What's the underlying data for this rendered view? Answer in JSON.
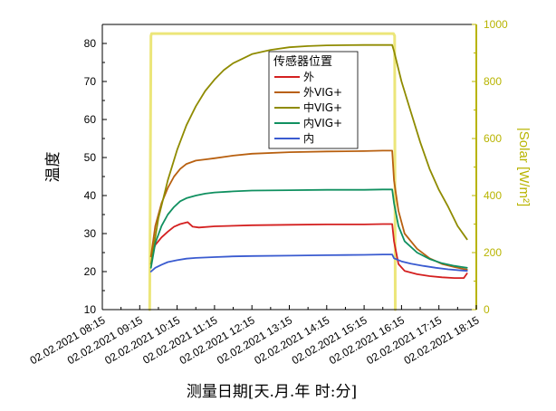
{
  "chart_data": {
    "type": "line",
    "xlabel": "测量日期[天.月.年 时:分]",
    "ylabel": "温度",
    "y2label": "|Solar [W/m²]",
    "x_ticks": [
      "02.02.2021 08:15",
      "02.02.2021 09:15",
      "02.02.2021 10:15",
      "02.02.2021 11:15",
      "02.02.2021 12:15",
      "02.02.2021 13:15",
      "02.02.2021 14:15",
      "02.02.2021 15:15",
      "02.02.2021 16:15",
      "02.02.2021 17:15",
      "02.02.2021 18:15"
    ],
    "xlim": [
      "08:15",
      "18:15"
    ],
    "ylim": [
      10,
      85
    ],
    "y_ticks": [
      10,
      20,
      30,
      40,
      50,
      60,
      70,
      80
    ],
    "y2lim": [
      0,
      1000
    ],
    "y2_ticks": [
      0,
      200,
      400,
      600,
      800,
      1000
    ],
    "legend": {
      "title": "传感器位置",
      "placement": "top-center"
    },
    "series": [
      {
        "name": "外",
        "color": "#d42020",
        "axis": "left",
        "x": [
          "09:33",
          "09:40",
          "09:50",
          "10:00",
          "10:10",
          "10:20",
          "10:32",
          "10:40",
          "10:50",
          "11:15",
          "12:15",
          "13:15",
          "14:15",
          "15:15",
          "15:45",
          "16:00",
          "16:03",
          "16:10",
          "16:20",
          "16:40",
          "17:00",
          "17:20",
          "17:40",
          "17:55",
          "18:00"
        ],
        "y": [
          24,
          27,
          29,
          30.5,
          31.8,
          32.5,
          33,
          31.8,
          31.6,
          31.9,
          32.2,
          32.3,
          32.4,
          32.4,
          32.5,
          32.5,
          28,
          22,
          20.2,
          19.3,
          18.8,
          18.5,
          18.3,
          18.3,
          19.5
        ]
      },
      {
        "name": "外VIG+",
        "color": "#b86010",
        "axis": "left",
        "x": [
          "09:33",
          "09:40",
          "09:50",
          "10:00",
          "10:10",
          "10:20",
          "10:30",
          "10:45",
          "11:00",
          "11:15",
          "11:45",
          "12:15",
          "13:15",
          "14:15",
          "15:15",
          "15:45",
          "16:00",
          "16:03",
          "16:10",
          "16:20",
          "16:40",
          "17:00",
          "17:20",
          "17:40",
          "18:00"
        ],
        "y": [
          24,
          32,
          38,
          42,
          45,
          47,
          48.3,
          49.2,
          49.5,
          49.8,
          50.5,
          51,
          51.4,
          51.6,
          51.7,
          51.8,
          51.8,
          44,
          36,
          30,
          26,
          23.5,
          22,
          21.2,
          20.5
        ]
      },
      {
        "name": "中VIG+",
        "color": "#8f8b00",
        "axis": "left",
        "x": [
          "09:33",
          "09:45",
          "10:00",
          "10:15",
          "10:30",
          "10:45",
          "11:00",
          "11:15",
          "11:30",
          "11:45",
          "12:00",
          "12:15",
          "12:45",
          "13:15",
          "13:45",
          "14:15",
          "15:15",
          "15:45",
          "16:00",
          "16:03",
          "16:15",
          "16:30",
          "16:45",
          "17:00",
          "17:15",
          "17:30",
          "17:45",
          "18:00"
        ],
        "y": [
          22,
          34,
          44,
          52,
          58.5,
          63.5,
          67.5,
          70.5,
          73,
          74.8,
          76,
          77.2,
          78.3,
          79,
          79.3,
          79.5,
          79.6,
          79.6,
          79.6,
          78,
          70,
          62,
          54,
          47,
          41.5,
          37,
          32,
          28.5
        ]
      },
      {
        "name": "内VIG+",
        "color": "#109060",
        "axis": "left",
        "x": [
          "09:33",
          "09:40",
          "09:50",
          "10:00",
          "10:10",
          "10:20",
          "10:30",
          "10:45",
          "11:00",
          "11:15",
          "11:45",
          "12:15",
          "13:15",
          "14:15",
          "15:15",
          "15:45",
          "16:00",
          "16:03",
          "16:10",
          "16:20",
          "16:40",
          "17:00",
          "17:20",
          "17:40",
          "18:00"
        ],
        "y": [
          21,
          27.5,
          32,
          35,
          37,
          38.5,
          39.3,
          40,
          40.5,
          40.8,
          41.1,
          41.3,
          41.4,
          41.5,
          41.5,
          41.6,
          41.6,
          38,
          32,
          28,
          25,
          23.3,
          22.2,
          21.5,
          21
        ]
      },
      {
        "name": "内",
        "color": "#3a5bd0",
        "axis": "left",
        "x": [
          "09:33",
          "09:40",
          "09:50",
          "10:00",
          "10:15",
          "10:30",
          "10:45",
          "11:15",
          "11:45",
          "12:15",
          "13:15",
          "14:15",
          "15:15",
          "15:45",
          "16:00",
          "16:03",
          "16:15",
          "16:30",
          "16:50",
          "17:10",
          "17:30",
          "17:50",
          "18:00"
        ],
        "y": [
          20,
          21,
          21.8,
          22.5,
          23,
          23.4,
          23.6,
          23.8,
          24,
          24.1,
          24.2,
          24.3,
          24.4,
          24.5,
          24.5,
          23.5,
          22.7,
          22.1,
          21.5,
          21,
          20.6,
          20.3,
          20.2
        ]
      },
      {
        "name": "Solar",
        "color": "#ece67a",
        "axis": "right",
        "legend": false,
        "x": [
          "09:31",
          "09:33",
          "09:34",
          "16:01",
          "16:02",
          "16:04",
          "16:05"
        ],
        "y": [
          0,
          960,
          968,
          968,
          968,
          960,
          0
        ]
      }
    ]
  }
}
